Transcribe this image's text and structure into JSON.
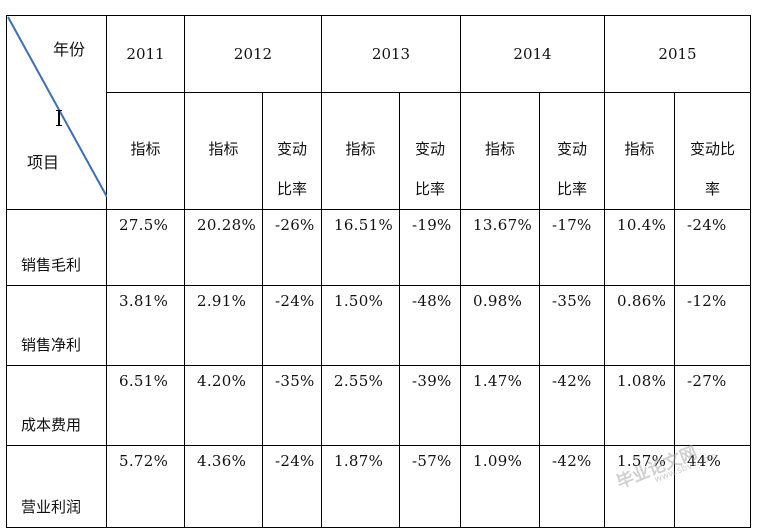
{
  "table": {
    "corner_year": "年份",
    "corner_item": "项目",
    "years": [
      "2011",
      "2012",
      "2013",
      "2014",
      "2015"
    ],
    "sub_indicator": "指标",
    "sub_change_a": "变动",
    "sub_change_b": "比率",
    "sub_change_2015_a": "变动比",
    "sub_change_2015_b": "率",
    "rows": [
      {
        "label": "销售毛利",
        "values": [
          "27.5%",
          "20.28%",
          "-26%",
          "16.51%",
          "-19%",
          "13.67%",
          "-17%",
          "10.4%",
          "-24%"
        ]
      },
      {
        "label": "销售净利",
        "values": [
          "3.81%",
          "2.91%",
          "-24%",
          "1.50%",
          "-48%",
          "0.98%",
          "-35%",
          "0.86%",
          "-12%"
        ]
      },
      {
        "label": "成本费用",
        "values": [
          "6.51%",
          "4.20%",
          "-35%",
          "2.55%",
          "-39%",
          "1.47%",
          "-42%",
          "1.08%",
          "-27%"
        ]
      },
      {
        "label": "营业利润",
        "values": [
          "5.72%",
          "4.36%",
          "-24%",
          "1.87%",
          "-57%",
          "1.09%",
          "-42%",
          "1.57%",
          "44%"
        ]
      }
    ]
  },
  "watermark": {
    "text": "毕业论文网",
    "url": "www.sbvv.com"
  },
  "colors": {
    "diagonal": "#3c6fb5",
    "border": "#000000"
  }
}
